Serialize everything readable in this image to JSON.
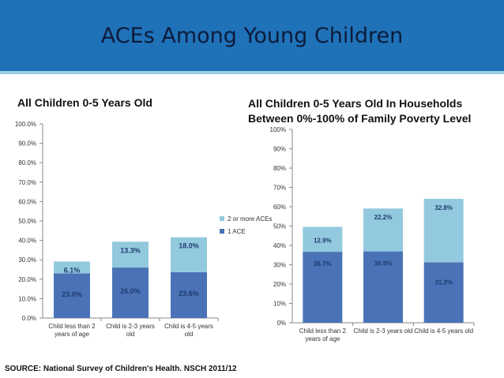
{
  "slide_title": "ACEs Among Young Children",
  "source": "SOURCE: National Survey of Children's Health. NSCH 2011/12",
  "chart_data": [
    {
      "type": "bar",
      "stacked": true,
      "title": "All Children 0-5 Years Old",
      "categories": [
        [
          "Child less than 2",
          "years of age"
        ],
        [
          "Child is 2-3 years",
          "old"
        ],
        [
          "Child is 4-5 years",
          "old"
        ]
      ],
      "series": [
        {
          "name": "1 ACE",
          "values": [
            23.0,
            26.0,
            23.6
          ],
          "labels": [
            "23.0%",
            "26.0%",
            "23.6%"
          ],
          "color": "#4a72b6"
        },
        {
          "name": "2 or more ACEs",
          "values": [
            6.1,
            13.3,
            18.0
          ],
          "labels": [
            "6.1%",
            "13.3%",
            "18.0%"
          ],
          "color": "#93c9de"
        }
      ],
      "yticks": [
        "0.0%",
        "10.0%",
        "20.0%",
        "30.0%",
        "40.0%",
        "50.0%",
        "60.0%",
        "70.0%",
        "80.0%",
        "90.0%",
        "100.0%"
      ],
      "ylim": [
        0,
        100
      ],
      "legend": "right",
      "grid": false
    },
    {
      "type": "bar",
      "stacked": true,
      "title": "All Children 0-5 Years Old In Households Between 0%-100% of Family Poverty Level",
      "categories": [
        [
          "Child less than 2",
          "years of age"
        ],
        [
          "Child is 2-3 years old"
        ],
        [
          "Child is 4-5 years old"
        ]
      ],
      "series": [
        {
          "name": "1 ACE",
          "values": [
            36.7,
            36.9,
            31.3
          ],
          "labels": [
            "36.7%",
            "36.9%",
            "31.3%"
          ],
          "color": "#4a72b6"
        },
        {
          "name": "2 or more ACEs",
          "values": [
            12.9,
            22.2,
            32.8
          ],
          "labels": [
            "12.9%",
            "22.2%",
            "32.8%"
          ],
          "color": "#93c9de"
        }
      ],
      "yticks": [
        "0%",
        "10%",
        "20%",
        "30%",
        "40%",
        "50%",
        "60%",
        "70%",
        "80%",
        "90%",
        "100%"
      ],
      "ylim": [
        0,
        100
      ],
      "legend": "none",
      "grid": false
    }
  ]
}
